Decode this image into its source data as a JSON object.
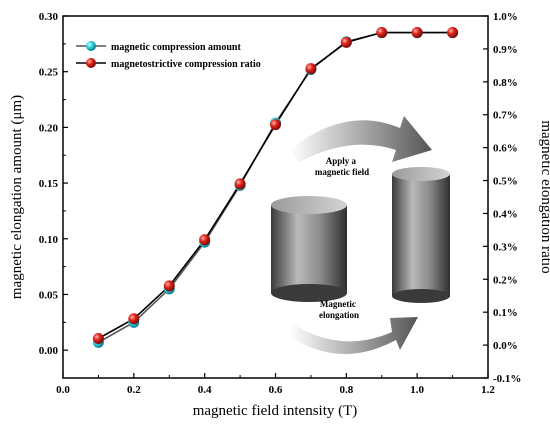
{
  "chart_data": {
    "type": "line",
    "xlabel": "magnetic field intensity (T)",
    "ylabel": "magnetic elongation amount (μm)",
    "ylabel_right": "magnetic elongation ratio",
    "xlim": [
      0.0,
      1.2
    ],
    "ylim": [
      -0.025,
      0.3
    ],
    "ylim_right": [
      -0.1,
      1.0
    ],
    "x_ticks": [
      "0.0",
      "0.2",
      "0.4",
      "0.6",
      "0.8",
      "1.0",
      "1.2"
    ],
    "y_ticks": [
      "0.00",
      "0.05",
      "0.10",
      "0.15",
      "0.20",
      "0.25",
      "0.30"
    ],
    "y_right_ticks": [
      "-0.1%",
      "0.0%",
      "0.1%",
      "0.2%",
      "0.3%",
      "0.4%",
      "0.5%",
      "0.6%",
      "0.7%",
      "0.8%",
      "0.9%",
      "1.0%"
    ],
    "grid": false,
    "legend_position": "top-left",
    "x": [
      0.1,
      0.2,
      0.3,
      0.4,
      0.5,
      0.6,
      0.7,
      0.8,
      0.9,
      1.0,
      1.1
    ],
    "series": [
      {
        "name": "magnetic compression amount",
        "axis": "left",
        "color": "#35d4e4",
        "values": [
          0.007,
          0.025,
          0.055,
          0.097,
          0.148,
          0.204,
          0.252,
          0.277,
          0.285,
          0.285,
          0.285
        ]
      },
      {
        "name": "magnetostrictive compression ratio",
        "axis": "right",
        "color": "#e3231b",
        "values": [
          0.02,
          0.08,
          0.18,
          0.32,
          0.49,
          0.67,
          0.84,
          0.92,
          0.95,
          0.95,
          0.95
        ]
      }
    ],
    "annotations": {
      "arrow_top": "Apply a\nmagnetic field",
      "arrow_bottom": "Magnetic\nelongation"
    }
  }
}
